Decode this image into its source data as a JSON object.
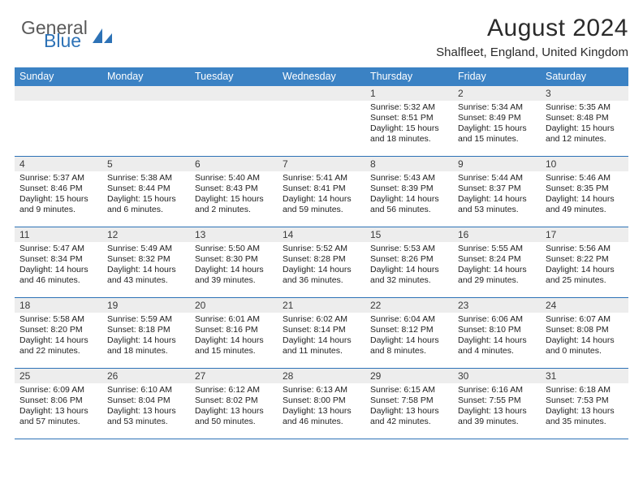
{
  "branding": {
    "word1": "General",
    "word2": "Blue",
    "text_color_general": "#5a5a5a",
    "text_color_blue": "#2d72b6",
    "icon_color": "#2d72b6"
  },
  "title": {
    "month_year": "August 2024",
    "location": "Shalfleet, England, United Kingdom"
  },
  "colors": {
    "header_band": "#3b82c4",
    "header_text": "#ffffff",
    "daynum_band": "#ededed",
    "row_border": "#2d72b6",
    "background": "#ffffff",
    "body_text": "#2b2b2b"
  },
  "typography": {
    "title_fontsize": 30,
    "location_fontsize": 15,
    "dayheader_fontsize": 12.5,
    "daynum_fontsize": 12,
    "cell_fontsize": 10.5
  },
  "day_headers": [
    "Sunday",
    "Monday",
    "Tuesday",
    "Wednesday",
    "Thursday",
    "Friday",
    "Saturday"
  ],
  "weeks": [
    [
      {
        "num": "",
        "sunrise": "",
        "sunset": "",
        "daylight1": "",
        "daylight2": ""
      },
      {
        "num": "",
        "sunrise": "",
        "sunset": "",
        "daylight1": "",
        "daylight2": ""
      },
      {
        "num": "",
        "sunrise": "",
        "sunset": "",
        "daylight1": "",
        "daylight2": ""
      },
      {
        "num": "",
        "sunrise": "",
        "sunset": "",
        "daylight1": "",
        "daylight2": ""
      },
      {
        "num": "1",
        "sunrise": "Sunrise: 5:32 AM",
        "sunset": "Sunset: 8:51 PM",
        "daylight1": "Daylight: 15 hours",
        "daylight2": "and 18 minutes."
      },
      {
        "num": "2",
        "sunrise": "Sunrise: 5:34 AM",
        "sunset": "Sunset: 8:49 PM",
        "daylight1": "Daylight: 15 hours",
        "daylight2": "and 15 minutes."
      },
      {
        "num": "3",
        "sunrise": "Sunrise: 5:35 AM",
        "sunset": "Sunset: 8:48 PM",
        "daylight1": "Daylight: 15 hours",
        "daylight2": "and 12 minutes."
      }
    ],
    [
      {
        "num": "4",
        "sunrise": "Sunrise: 5:37 AM",
        "sunset": "Sunset: 8:46 PM",
        "daylight1": "Daylight: 15 hours",
        "daylight2": "and 9 minutes."
      },
      {
        "num": "5",
        "sunrise": "Sunrise: 5:38 AM",
        "sunset": "Sunset: 8:44 PM",
        "daylight1": "Daylight: 15 hours",
        "daylight2": "and 6 minutes."
      },
      {
        "num": "6",
        "sunrise": "Sunrise: 5:40 AM",
        "sunset": "Sunset: 8:43 PM",
        "daylight1": "Daylight: 15 hours",
        "daylight2": "and 2 minutes."
      },
      {
        "num": "7",
        "sunrise": "Sunrise: 5:41 AM",
        "sunset": "Sunset: 8:41 PM",
        "daylight1": "Daylight: 14 hours",
        "daylight2": "and 59 minutes."
      },
      {
        "num": "8",
        "sunrise": "Sunrise: 5:43 AM",
        "sunset": "Sunset: 8:39 PM",
        "daylight1": "Daylight: 14 hours",
        "daylight2": "and 56 minutes."
      },
      {
        "num": "9",
        "sunrise": "Sunrise: 5:44 AM",
        "sunset": "Sunset: 8:37 PM",
        "daylight1": "Daylight: 14 hours",
        "daylight2": "and 53 minutes."
      },
      {
        "num": "10",
        "sunrise": "Sunrise: 5:46 AM",
        "sunset": "Sunset: 8:35 PM",
        "daylight1": "Daylight: 14 hours",
        "daylight2": "and 49 minutes."
      }
    ],
    [
      {
        "num": "11",
        "sunrise": "Sunrise: 5:47 AM",
        "sunset": "Sunset: 8:34 PM",
        "daylight1": "Daylight: 14 hours",
        "daylight2": "and 46 minutes."
      },
      {
        "num": "12",
        "sunrise": "Sunrise: 5:49 AM",
        "sunset": "Sunset: 8:32 PM",
        "daylight1": "Daylight: 14 hours",
        "daylight2": "and 43 minutes."
      },
      {
        "num": "13",
        "sunrise": "Sunrise: 5:50 AM",
        "sunset": "Sunset: 8:30 PM",
        "daylight1": "Daylight: 14 hours",
        "daylight2": "and 39 minutes."
      },
      {
        "num": "14",
        "sunrise": "Sunrise: 5:52 AM",
        "sunset": "Sunset: 8:28 PM",
        "daylight1": "Daylight: 14 hours",
        "daylight2": "and 36 minutes."
      },
      {
        "num": "15",
        "sunrise": "Sunrise: 5:53 AM",
        "sunset": "Sunset: 8:26 PM",
        "daylight1": "Daylight: 14 hours",
        "daylight2": "and 32 minutes."
      },
      {
        "num": "16",
        "sunrise": "Sunrise: 5:55 AM",
        "sunset": "Sunset: 8:24 PM",
        "daylight1": "Daylight: 14 hours",
        "daylight2": "and 29 minutes."
      },
      {
        "num": "17",
        "sunrise": "Sunrise: 5:56 AM",
        "sunset": "Sunset: 8:22 PM",
        "daylight1": "Daylight: 14 hours",
        "daylight2": "and 25 minutes."
      }
    ],
    [
      {
        "num": "18",
        "sunrise": "Sunrise: 5:58 AM",
        "sunset": "Sunset: 8:20 PM",
        "daylight1": "Daylight: 14 hours",
        "daylight2": "and 22 minutes."
      },
      {
        "num": "19",
        "sunrise": "Sunrise: 5:59 AM",
        "sunset": "Sunset: 8:18 PM",
        "daylight1": "Daylight: 14 hours",
        "daylight2": "and 18 minutes."
      },
      {
        "num": "20",
        "sunrise": "Sunrise: 6:01 AM",
        "sunset": "Sunset: 8:16 PM",
        "daylight1": "Daylight: 14 hours",
        "daylight2": "and 15 minutes."
      },
      {
        "num": "21",
        "sunrise": "Sunrise: 6:02 AM",
        "sunset": "Sunset: 8:14 PM",
        "daylight1": "Daylight: 14 hours",
        "daylight2": "and 11 minutes."
      },
      {
        "num": "22",
        "sunrise": "Sunrise: 6:04 AM",
        "sunset": "Sunset: 8:12 PM",
        "daylight1": "Daylight: 14 hours",
        "daylight2": "and 8 minutes."
      },
      {
        "num": "23",
        "sunrise": "Sunrise: 6:06 AM",
        "sunset": "Sunset: 8:10 PM",
        "daylight1": "Daylight: 14 hours",
        "daylight2": "and 4 minutes."
      },
      {
        "num": "24",
        "sunrise": "Sunrise: 6:07 AM",
        "sunset": "Sunset: 8:08 PM",
        "daylight1": "Daylight: 14 hours",
        "daylight2": "and 0 minutes."
      }
    ],
    [
      {
        "num": "25",
        "sunrise": "Sunrise: 6:09 AM",
        "sunset": "Sunset: 8:06 PM",
        "daylight1": "Daylight: 13 hours",
        "daylight2": "and 57 minutes."
      },
      {
        "num": "26",
        "sunrise": "Sunrise: 6:10 AM",
        "sunset": "Sunset: 8:04 PM",
        "daylight1": "Daylight: 13 hours",
        "daylight2": "and 53 minutes."
      },
      {
        "num": "27",
        "sunrise": "Sunrise: 6:12 AM",
        "sunset": "Sunset: 8:02 PM",
        "daylight1": "Daylight: 13 hours",
        "daylight2": "and 50 minutes."
      },
      {
        "num": "28",
        "sunrise": "Sunrise: 6:13 AM",
        "sunset": "Sunset: 8:00 PM",
        "daylight1": "Daylight: 13 hours",
        "daylight2": "and 46 minutes."
      },
      {
        "num": "29",
        "sunrise": "Sunrise: 6:15 AM",
        "sunset": "Sunset: 7:58 PM",
        "daylight1": "Daylight: 13 hours",
        "daylight2": "and 42 minutes."
      },
      {
        "num": "30",
        "sunrise": "Sunrise: 6:16 AM",
        "sunset": "Sunset: 7:55 PM",
        "daylight1": "Daylight: 13 hours",
        "daylight2": "and 39 minutes."
      },
      {
        "num": "31",
        "sunrise": "Sunrise: 6:18 AM",
        "sunset": "Sunset: 7:53 PM",
        "daylight1": "Daylight: 13 hours",
        "daylight2": "and 35 minutes."
      }
    ]
  ]
}
